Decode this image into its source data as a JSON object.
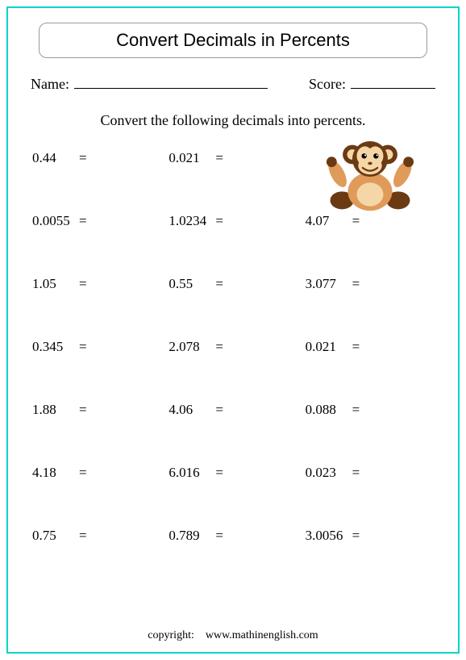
{
  "title": "Convert Decimals in Percents",
  "name_label": "Name:",
  "score_label": "Score:",
  "instruction": "Convert the following decimals into percents.",
  "equals": "=",
  "problems": [
    [
      "0.44",
      "0.021",
      null
    ],
    [
      "0.0055",
      "1.0234",
      "4.07"
    ],
    [
      "1.05",
      "0.55",
      "3.077"
    ],
    [
      "0.345",
      "2.078",
      "0.021"
    ],
    [
      "1.88",
      "4.06",
      "0.088"
    ],
    [
      "4.18",
      "6.016",
      "0.023"
    ],
    [
      "0.75",
      "0.789",
      "3.0056"
    ]
  ],
  "footer_label": "copyright:",
  "footer_url": "www.mathinenglish.com",
  "colors": {
    "border": "#00d4c8",
    "monkey_body": "#e09a5a",
    "monkey_dark": "#6b3a13",
    "monkey_face": "#f5d7a7"
  }
}
